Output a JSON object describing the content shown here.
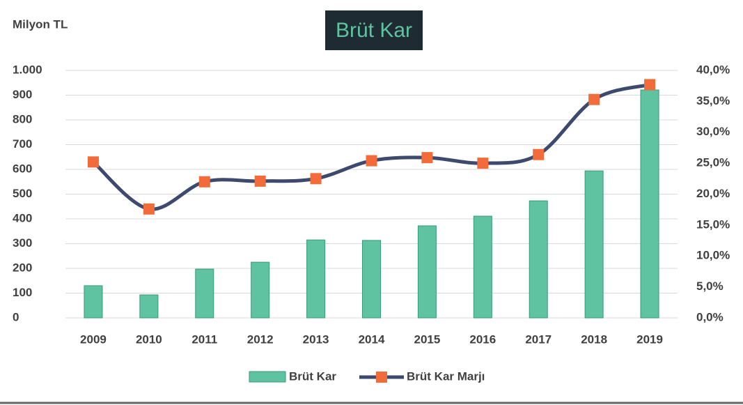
{
  "chart_data": {
    "type": "bar-line",
    "title": "Brüt Kar",
    "y_label": "Milyon TL",
    "categories": [
      "2009",
      "2010",
      "2011",
      "2012",
      "2013",
      "2014",
      "2015",
      "2016",
      "2017",
      "2018",
      "2019"
    ],
    "series": [
      {
        "name": "Brüt Kar",
        "type": "bar",
        "color": "#5fc2a0",
        "values": [
          130,
          93,
          197,
          225,
          315,
          313,
          372,
          411,
          473,
          594,
          921
        ]
      },
      {
        "name": "Brüt Kar Marjı",
        "type": "line",
        "axis": "y2",
        "color": "#3d4a6e",
        "marker_color": "#f26b3a",
        "values": [
          25.2,
          17.6,
          22.0,
          22.1,
          22.5,
          25.4,
          25.9,
          25.0,
          26.4,
          35.3,
          37.7
        ]
      }
    ],
    "ylim": [
      0,
      1000
    ],
    "yticks": [
      0,
      100,
      200,
      300,
      400,
      500,
      600,
      700,
      800,
      900,
      {
        "value": 1000,
        "label": "1.000"
      }
    ],
    "y2lim": [
      0,
      40
    ],
    "y2ticks": [
      {
        "value": 0,
        "label": "0,0%"
      },
      {
        "value": 5,
        "label": "5,0%"
      },
      {
        "value": 10,
        "label": "10,0%"
      },
      {
        "value": 15,
        "label": "15,0%"
      },
      {
        "value": 20,
        "label": "20,0%"
      },
      {
        "value": 25,
        "label": "25,0%"
      },
      {
        "value": 30,
        "label": "30,0%"
      },
      {
        "value": 35,
        "label": "35,0%"
      },
      {
        "value": 40,
        "label": "40,0%"
      }
    ],
    "grid": true,
    "legend": "bottom"
  }
}
